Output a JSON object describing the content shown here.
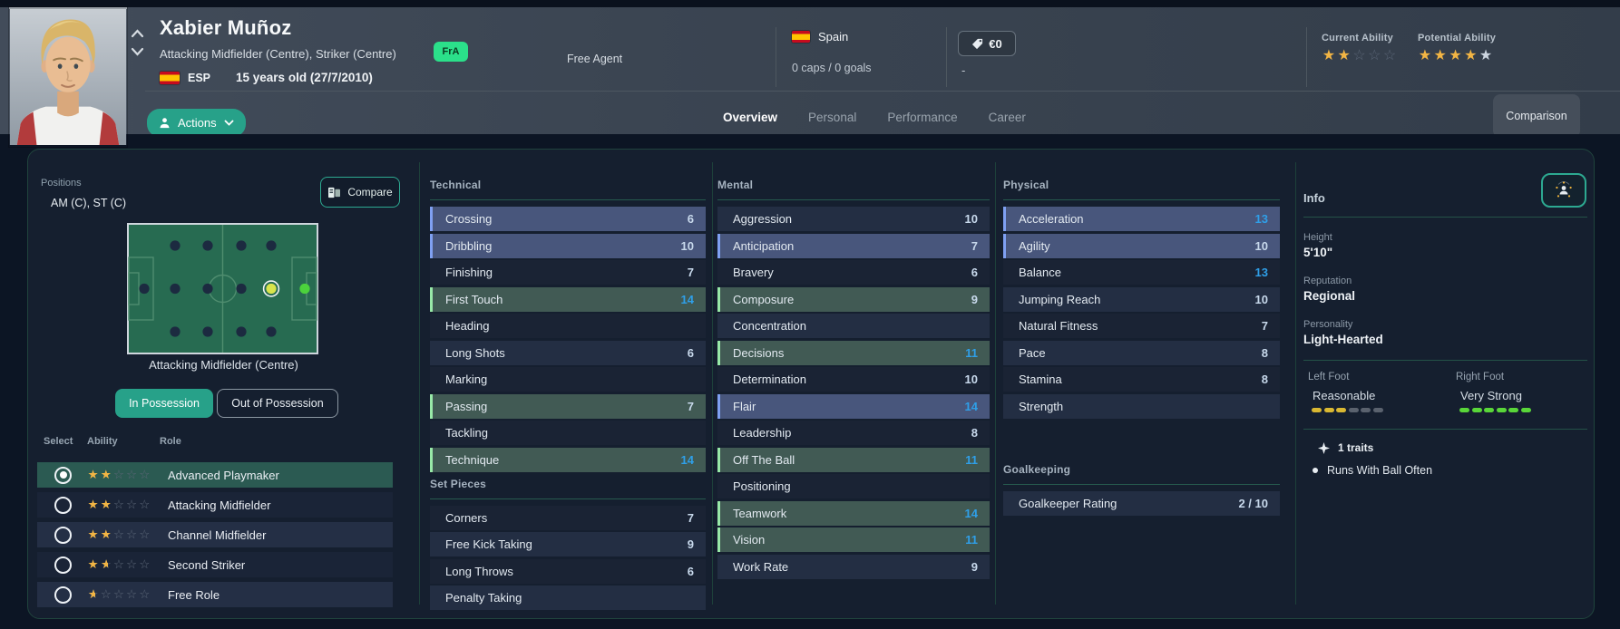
{
  "colors": {
    "accent_teal": "#27a189",
    "transfer_badge_green": "#2be08a",
    "star_gold": "#f2b544",
    "attribute_value_bright": "#2f9fe8",
    "attribute_value_pale": "#c8d9ec",
    "highlight_blue_row": "#48567c",
    "highlight_green_row": "#415a54",
    "left_foot_bar": "#d9b832",
    "right_foot_bar": "#59d639"
  },
  "header": {
    "name": "Xabier Muñoz",
    "positions_line": "Attacking Midfielder (Centre), Striker (Centre)",
    "transfer_badge": "FrA",
    "nation_code": "ESP",
    "age_line": "15 years old (27/7/2010)",
    "club_status": "Free Agent",
    "nation_name": "Spain",
    "international_record": "0 caps / 0 goals",
    "market_value": "€0",
    "wage": "-",
    "current_ability_label": "Current Ability",
    "potential_ability_label": "Potential Ability",
    "current_ability": {
      "gold": 2,
      "silver": 0,
      "total": 5
    },
    "potential_ability": {
      "gold": 4,
      "silver": 1,
      "total": 5
    },
    "actions_label": "Actions",
    "tabs": [
      {
        "label": "Overview",
        "active": true
      },
      {
        "label": "Personal",
        "active": false
      },
      {
        "label": "Performance",
        "active": false
      },
      {
        "label": "Career",
        "active": false
      }
    ],
    "comparison_label": "Comparison"
  },
  "positions_panel": {
    "title": "Positions",
    "summary": "AM (C), ST (C)",
    "compare_label": "Compare",
    "pitch": {
      "caption": "Attacking Midfielder (Centre)",
      "dots": [
        {
          "pos": "GK",
          "state": "none"
        },
        {
          "pos": "DL",
          "state": "none"
        },
        {
          "pos": "DC",
          "state": "none"
        },
        {
          "pos": "DR",
          "state": "none"
        },
        {
          "pos": "WBL",
          "state": "none"
        },
        {
          "pos": "DM",
          "state": "none"
        },
        {
          "pos": "WBR",
          "state": "none"
        },
        {
          "pos": "ML",
          "state": "none"
        },
        {
          "pos": "MC",
          "state": "none"
        },
        {
          "pos": "MR",
          "state": "none"
        },
        {
          "pos": "AML",
          "state": "none"
        },
        {
          "pos": "AMC",
          "state": "selected"
        },
        {
          "pos": "AMR",
          "state": "none"
        },
        {
          "pos": "ST",
          "state": "natural"
        }
      ]
    },
    "possession_toggle": [
      {
        "label": "In Possession",
        "active": true
      },
      {
        "label": "Out of Possession",
        "active": false
      }
    ],
    "role_table": {
      "columns": [
        "Select",
        "Ability",
        "Role"
      ],
      "rows": [
        {
          "role": "Advanced Playmaker",
          "stars": 2,
          "selected": true
        },
        {
          "role": "Attacking Midfielder",
          "stars": 2,
          "selected": false
        },
        {
          "role": "Channel Midfielder",
          "stars": 2,
          "selected": false
        },
        {
          "role": "Second Striker",
          "stars": 1.5,
          "selected": false
        },
        {
          "role": "Free Role",
          "stars": 0.5,
          "selected": false
        }
      ]
    }
  },
  "attributes": {
    "technical": {
      "title": "Technical",
      "rows": [
        {
          "name": "Crossing",
          "value": 6,
          "tone": "blue"
        },
        {
          "name": "Dribbling",
          "value": 10,
          "tone": "blue"
        },
        {
          "name": "Finishing",
          "value": 7,
          "tone": "dark"
        },
        {
          "name": "First Touch",
          "value": 14,
          "tone": "green"
        },
        {
          "name": "Heading",
          "value": null,
          "tone": "dark"
        },
        {
          "name": "Long Shots",
          "value": 6,
          "tone": "light"
        },
        {
          "name": "Marking",
          "value": null,
          "tone": "dark"
        },
        {
          "name": "Passing",
          "value": 7,
          "tone": "green"
        },
        {
          "name": "Tackling",
          "value": null,
          "tone": "dark"
        },
        {
          "name": "Technique",
          "value": 14,
          "tone": "green"
        }
      ]
    },
    "set_pieces": {
      "title": "Set Pieces",
      "rows": [
        {
          "name": "Corners",
          "value": 7,
          "tone": "dark"
        },
        {
          "name": "Free Kick Taking",
          "value": 9,
          "tone": "light"
        },
        {
          "name": "Long Throws",
          "value": 6,
          "tone": "dark"
        },
        {
          "name": "Penalty Taking",
          "value": null,
          "tone": "light"
        }
      ]
    },
    "mental": {
      "title": "Mental",
      "rows": [
        {
          "name": "Aggression",
          "value": 10,
          "tone": "light"
        },
        {
          "name": "Anticipation",
          "value": 7,
          "tone": "blue"
        },
        {
          "name": "Bravery",
          "value": 6,
          "tone": "dark"
        },
        {
          "name": "Composure",
          "value": 9,
          "tone": "green"
        },
        {
          "name": "Concentration",
          "value": null,
          "tone": "light"
        },
        {
          "name": "Decisions",
          "value": 11,
          "tone": "green"
        },
        {
          "name": "Determination",
          "value": 10,
          "tone": "dark"
        },
        {
          "name": "Flair",
          "value": 14,
          "tone": "blue"
        },
        {
          "name": "Leadership",
          "value": 8,
          "tone": "dark"
        },
        {
          "name": "Off The Ball",
          "value": 11,
          "tone": "green"
        },
        {
          "name": "Positioning",
          "value": null,
          "tone": "dark"
        },
        {
          "name": "Teamwork",
          "value": 14,
          "tone": "green"
        },
        {
          "name": "Vision",
          "value": 11,
          "tone": "green"
        },
        {
          "name": "Work Rate",
          "value": 9,
          "tone": "light"
        }
      ]
    },
    "physical": {
      "title": "Physical",
      "rows": [
        {
          "name": "Acceleration",
          "value": 13,
          "tone": "blue"
        },
        {
          "name": "Agility",
          "value": 10,
          "tone": "blue"
        },
        {
          "name": "Balance",
          "value": 13,
          "tone": "dark"
        },
        {
          "name": "Jumping Reach",
          "value": 10,
          "tone": "light"
        },
        {
          "name": "Natural Fitness",
          "value": 7,
          "tone": "dark"
        },
        {
          "name": "Pace",
          "value": 8,
          "tone": "light"
        },
        {
          "name": "Stamina",
          "value": 8,
          "tone": "dark"
        },
        {
          "name": "Strength",
          "value": null,
          "tone": "light"
        }
      ]
    },
    "goalkeeping": {
      "title": "Goalkeeping",
      "rows": [
        {
          "name": "Goalkeeper Rating",
          "value": "2 / 10",
          "tone": "light"
        }
      ]
    }
  },
  "info_panel": {
    "title": "Info",
    "fields": [
      {
        "label": "Height",
        "value": "5'10\""
      },
      {
        "label": "Reputation",
        "value": "Regional"
      },
      {
        "label": "Personality",
        "value": "Light-Hearted"
      }
    ],
    "feet": [
      {
        "label": "Left Foot",
        "rating": "Reasonable",
        "filled": 3,
        "total": 6,
        "color": "#d9b832"
      },
      {
        "label": "Right Foot",
        "rating": "Very Strong",
        "filled": 6,
        "total": 6,
        "color": "#59d639"
      }
    ],
    "traits_header": "1 traits",
    "traits": [
      "Runs With Ball Often"
    ]
  }
}
